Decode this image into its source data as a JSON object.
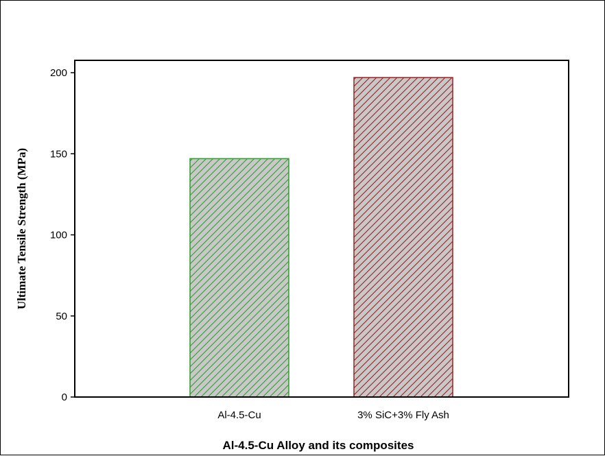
{
  "chart_data": {
    "type": "bar",
    "title": "",
    "xlabel": "Al-4.5-Cu Alloy and its composites",
    "ylabel": "Ultimate Tensile Strength (MPa)",
    "categories": [
      "Al-4.5-Cu",
      "3% SiC+3% Fly Ash"
    ],
    "values": [
      147,
      197
    ],
    "ylim": [
      0,
      200
    ],
    "yticks": [
      "0",
      "50",
      "100",
      "150",
      "200"
    ],
    "grid": false,
    "bar_styles": [
      {
        "fill": "#c8c8c8",
        "hatch": "#2e9e2e",
        "edge": "#2e9e2e"
      },
      {
        "fill": "#c8c8c8",
        "hatch": "#9b2020",
        "edge": "#9b2020"
      }
    ]
  }
}
